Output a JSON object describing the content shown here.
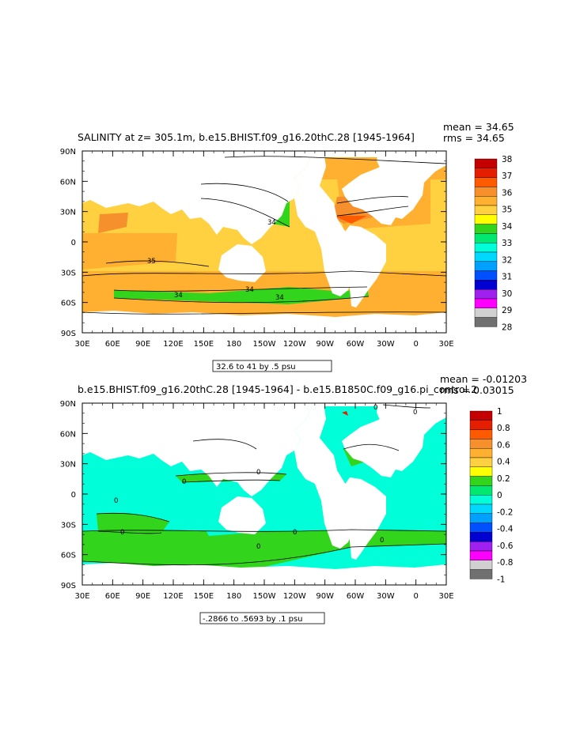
{
  "panels": [
    {
      "id": "top",
      "title": "SALINITY at z= 305.1m, b.e15.BHIST.f09_g16.20thC.28 [1945-1964]",
      "stat1": "mean = 34.65",
      "stat2": "rms = 34.65",
      "range_note": "32.6 to 41 by .5 psu",
      "contour_labels": [
        "34",
        "35",
        "34",
        "34",
        "34"
      ],
      "colorbar": {
        "labels": [
          "38",
          "37",
          "36",
          "35",
          "34",
          "33",
          "32",
          "31",
          "30",
          "29",
          "28"
        ],
        "colors": [
          "#c40000",
          "#e51e00",
          "#ff5a00",
          "#f5902c",
          "#ffb030",
          "#ffd040",
          "#ffff00",
          "#33d41c",
          "#00e870",
          "#00ffd8",
          "#00d8ff",
          "#00a0ff",
          "#0050ff",
          "#0000d0",
          "#a020f0",
          "#ff00ff",
          "#d0d0d0",
          "#707070"
        ]
      }
    },
    {
      "id": "bottom",
      "title": "b.e15.BHIST.f09_g16.20thC.28 [1945-1964] - b.e15.B1850C.f09_g16.pi_control.2",
      "stat1": "mean = -0.01203",
      "stat2": "rms = 0.03015",
      "range_note": "-.2866 to .5693 by .1 psu",
      "contour_labels": [
        "0",
        "0",
        "0",
        "0",
        "0",
        "0",
        "0",
        "0",
        "0"
      ],
      "colorbar": {
        "labels": [
          "1",
          "0.8",
          "0.6",
          "0.4",
          "0.2",
          "0",
          "-0.2",
          "-0.4",
          "-0.6",
          "-0.8",
          "-1"
        ],
        "colors": [
          "#c40000",
          "#e51e00",
          "#ff5a00",
          "#f5902c",
          "#ffb030",
          "#ffd040",
          "#ffff00",
          "#33d41c",
          "#00e870",
          "#00ffd8",
          "#00d8ff",
          "#00a0ff",
          "#0050ff",
          "#0000d0",
          "#a020f0",
          "#ff00ff",
          "#d0d0d0",
          "#707070"
        ]
      }
    }
  ],
  "axes": {
    "lat_labels": [
      "90N",
      "60N",
      "30N",
      "0",
      "30S",
      "60S",
      "90S"
    ],
    "lon_labels": [
      "30E",
      "60E",
      "90E",
      "120E",
      "150E",
      "180",
      "150W",
      "120W",
      "90W",
      "60W",
      "30W",
      "0",
      "30E"
    ]
  },
  "colors": {
    "land": "#ffffff",
    "top_base": "#ffd040",
    "top_high": "#f5902c",
    "top_sub": "#ffb030",
    "top_fresh": "#33d41c",
    "bottom_base": "#00ffd8",
    "bottom_pos": "#33d41c"
  }
}
